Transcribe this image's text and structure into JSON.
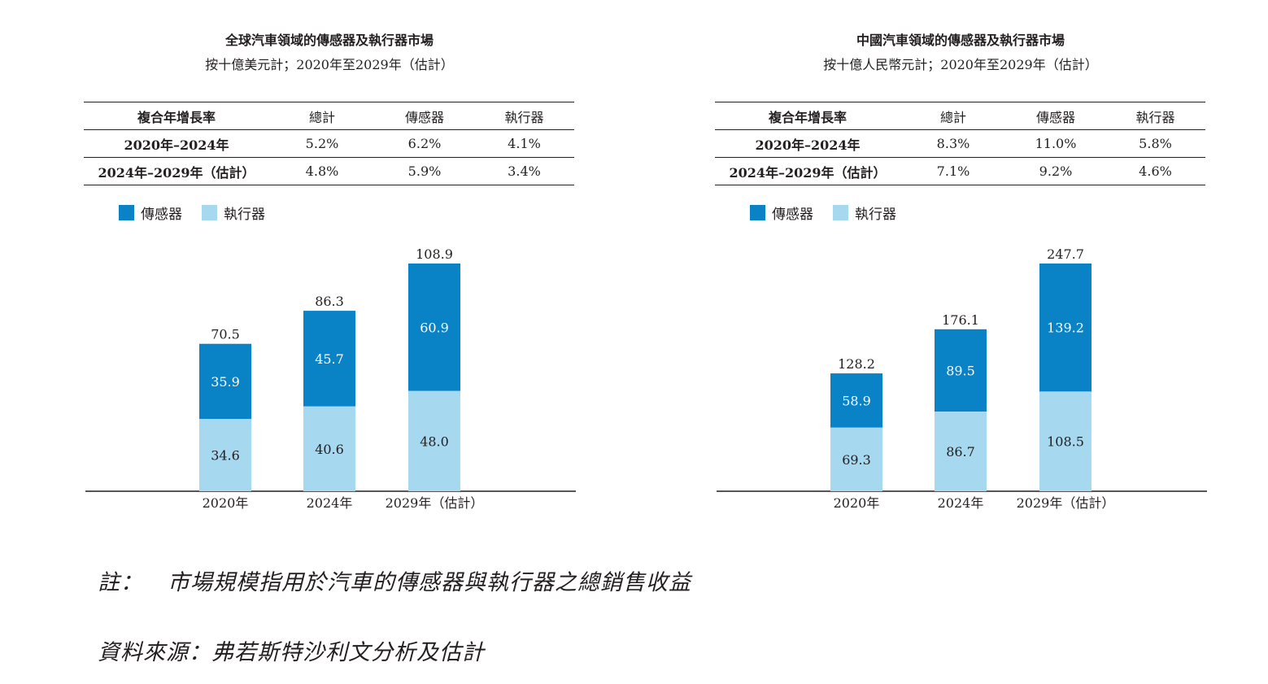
{
  "colors": {
    "sensor": "#0a82c6",
    "actuator": "#a6d8f0",
    "axis": "#231f20"
  },
  "legend": {
    "sensor": "傳感器",
    "actuator": "執行器"
  },
  "panels": [
    {
      "title": "全球汽車領域的傳感器及執行器市場",
      "subtitle": "按十億美元計；2020年至2029年（估計）",
      "table": {
        "headers": [
          "複合年增長率",
          "總計",
          "傳感器",
          "執行器"
        ],
        "rows": [
          [
            "2020年–2024年",
            "5.2%",
            "6.2%",
            "4.1%"
          ],
          [
            "2024年–2029年（估計）",
            "4.8%",
            "5.9%",
            "3.4%"
          ]
        ]
      }
    },
    {
      "title": "中國汽車領域的傳感器及執行器市場",
      "subtitle": "按十億人民幣元計；2020年至2029年（估計）",
      "table": {
        "headers": [
          "複合年增長率",
          "總計",
          "傳感器",
          "執行器"
        ],
        "rows": [
          [
            "2020年–2024年",
            "8.3%",
            "11.0%",
            "5.8%"
          ],
          [
            "2024年–2029年（估計）",
            "7.1%",
            "9.2%",
            "4.6%"
          ]
        ]
      }
    }
  ],
  "chart_data": [
    {
      "type": "bar",
      "stacked": true,
      "title": "全球汽車領域的傳感器及執行器市場",
      "unit": "十億美元",
      "categories": [
        "2020年",
        "2024年",
        "2029年（估計）"
      ],
      "series": [
        {
          "name": "執行器",
          "values": [
            34.6,
            40.6,
            48.0
          ],
          "labels": [
            "34.6",
            "40.6",
            "48.0"
          ]
        },
        {
          "name": "傳感器",
          "values": [
            35.9,
            45.7,
            60.9
          ],
          "labels": [
            "35.9",
            "45.7",
            "60.9"
          ]
        }
      ],
      "totals": [
        70.5,
        86.3,
        108.9
      ],
      "total_labels": [
        "70.5",
        "86.3",
        "108.9"
      ],
      "ylim": [
        0,
        108.9
      ]
    },
    {
      "type": "bar",
      "stacked": true,
      "title": "中國汽車領域的傳感器及執行器市場",
      "unit": "十億人民幣元",
      "categories": [
        "2020年",
        "2024年",
        "2029年（估計）"
      ],
      "series": [
        {
          "name": "執行器",
          "values": [
            69.3,
            86.7,
            108.5
          ],
          "labels": [
            "69.3",
            "86.7",
            "108.5"
          ]
        },
        {
          "name": "傳感器",
          "values": [
            58.9,
            89.5,
            139.2
          ],
          "labels": [
            "58.9",
            "89.5",
            "139.2"
          ]
        }
      ],
      "totals": [
        128.2,
        176.1,
        247.7
      ],
      "total_labels": [
        "128.2",
        "176.1",
        "247.7"
      ],
      "ylim": [
        0,
        247.7
      ]
    }
  ],
  "notes": {
    "note_label": "註：",
    "note_text": "市場規模指用於汽車的傳感器與執行器之總銷售收益",
    "source": "資料來源：弗若斯特沙利文分析及估計"
  }
}
